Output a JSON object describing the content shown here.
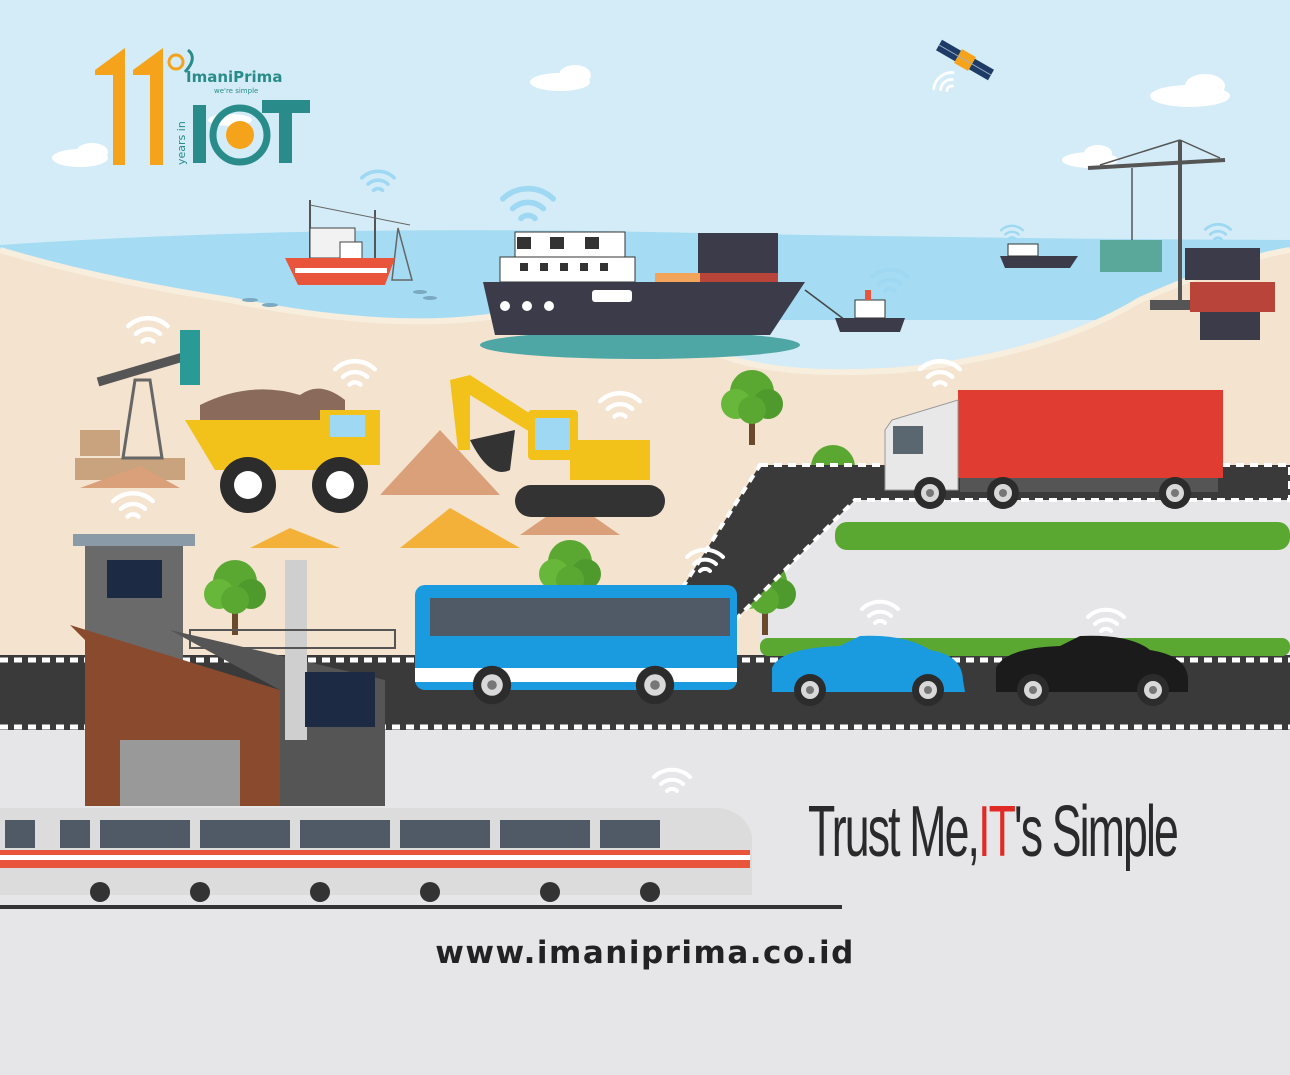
{
  "logo": {
    "number": "11",
    "years_label": "years in",
    "iot_label": "IOT",
    "brand": "ImaniPrima",
    "tagline": "we're simple"
  },
  "slogan": {
    "prefix": "Trust Me, ",
    "highlight": "IT",
    "suffix": "'s Simple"
  },
  "website": "www.imaniprima.co.id",
  "colors": {
    "sky": "#d3ecf7",
    "sea": "#a5dcf3",
    "sand": "#f3e3cf",
    "road": "#3a3a3a",
    "pavement": "#e6e6e8",
    "logo_orange": "#f5a31a",
    "logo_teal": "#2a8c8a",
    "slogan_red": "#e02a25"
  }
}
